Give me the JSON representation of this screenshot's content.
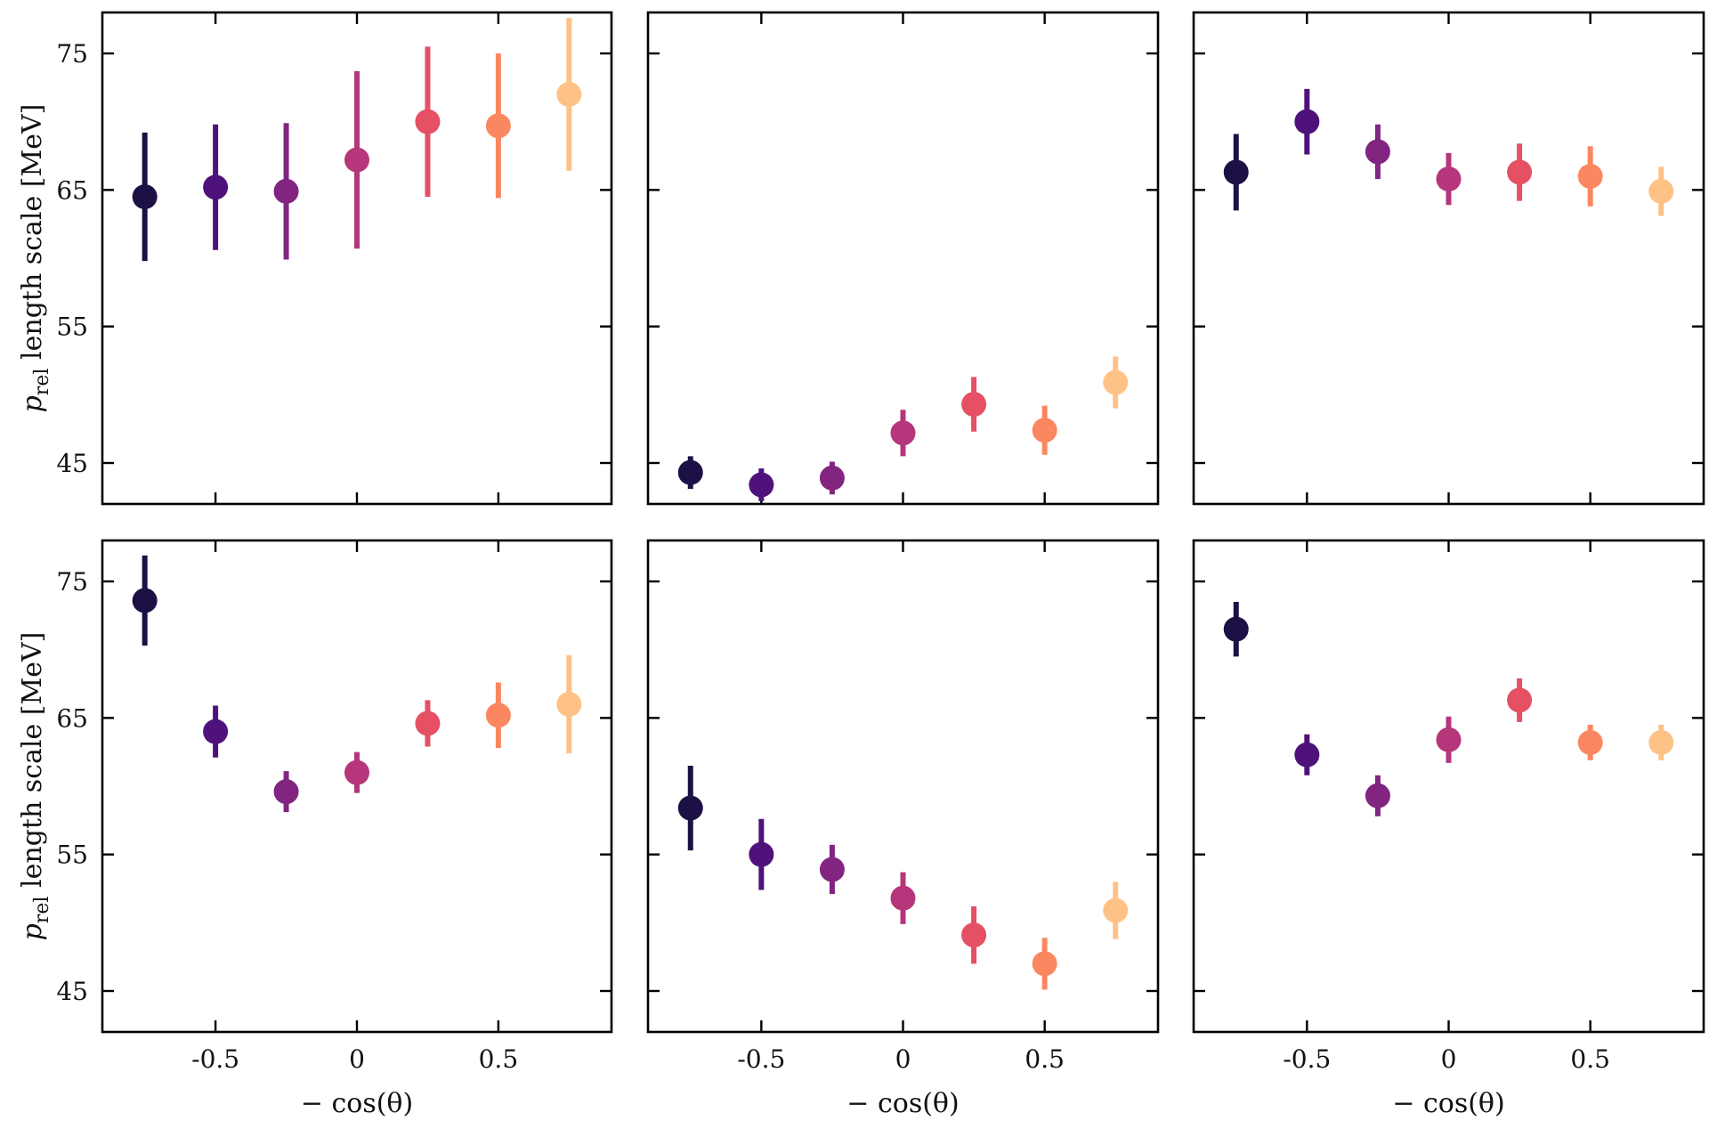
{
  "colors": [
    "#1c1044",
    "#4f127b",
    "#812581",
    "#b5367a",
    "#e55064",
    "#fb8761",
    "#fec287"
  ],
  "axis_labels": {
    "ylabel_var": "p",
    "ylabel_sub": "rel",
    "ylabel_rest": " length scale [MeV]",
    "xlabel": "− cos(θ)"
  },
  "chart_data": [
    {
      "type": "scatter",
      "panel": "top-left",
      "x": [
        -0.75,
        -0.5,
        -0.25,
        0,
        0.25,
        0.5,
        0.75
      ],
      "y": [
        64.5,
        65.2,
        64.9,
        67.2,
        70.0,
        69.7,
        72.0
      ],
      "err": [
        4.7,
        4.6,
        5.0,
        6.5,
        5.5,
        5.3,
        5.6
      ],
      "xlim": [
        -0.9,
        0.9
      ],
      "ylim": [
        42,
        78
      ],
      "xticks": [
        -0.5,
        0,
        0.5
      ],
      "yticks": [
        45,
        55,
        65,
        75
      ],
      "xticklabels": [
        "-0.5",
        "0",
        "0.5"
      ],
      "yticklabels": [
        "45",
        "55",
        "65",
        "75"
      ],
      "show_xticklabels": false,
      "show_yticklabels": true,
      "show_xlabel": false,
      "show_ylabel": true
    },
    {
      "type": "scatter",
      "panel": "top-center",
      "x": [
        -0.75,
        -0.5,
        -0.25,
        0,
        0.25,
        0.5,
        0.75
      ],
      "y": [
        44.3,
        43.4,
        43.9,
        47.2,
        49.3,
        47.4,
        50.9
      ],
      "err": [
        1.2,
        1.2,
        1.2,
        1.7,
        2.0,
        1.8,
        1.9
      ],
      "xlim": [
        -0.9,
        0.9
      ],
      "ylim": [
        42,
        78
      ],
      "xticks": [
        -0.5,
        0,
        0.5
      ],
      "yticks": [
        45,
        55,
        65,
        75
      ],
      "xticklabels": [
        "-0.5",
        "0",
        "0.5"
      ],
      "yticklabels": [
        "45",
        "55",
        "65",
        "75"
      ],
      "show_xticklabels": false,
      "show_yticklabels": false,
      "show_xlabel": false,
      "show_ylabel": false
    },
    {
      "type": "scatter",
      "panel": "top-right",
      "x": [
        -0.75,
        -0.5,
        -0.25,
        0,
        0.25,
        0.5,
        0.75
      ],
      "y": [
        66.3,
        70.0,
        67.8,
        65.8,
        66.3,
        66.0,
        64.9
      ],
      "err": [
        2.8,
        2.4,
        2.0,
        1.9,
        2.1,
        2.2,
        1.8
      ],
      "xlim": [
        -0.9,
        0.9
      ],
      "ylim": [
        42,
        78
      ],
      "xticks": [
        -0.5,
        0,
        0.5
      ],
      "yticks": [
        45,
        55,
        65,
        75
      ],
      "xticklabels": [
        "-0.5",
        "0",
        "0.5"
      ],
      "yticklabels": [
        "45",
        "55",
        "65",
        "75"
      ],
      "show_xticklabels": false,
      "show_yticklabels": false,
      "show_xlabel": false,
      "show_ylabel": false
    },
    {
      "type": "scatter",
      "panel": "bottom-left",
      "x": [
        -0.75,
        -0.5,
        -0.25,
        0,
        0.25,
        0.5,
        0.75
      ],
      "y": [
        73.6,
        64.0,
        59.6,
        61.0,
        64.6,
        65.2,
        66.0
      ],
      "err": [
        3.3,
        1.9,
        1.5,
        1.5,
        1.7,
        2.4,
        3.6
      ],
      "xlim": [
        -0.9,
        0.9
      ],
      "ylim": [
        42,
        78
      ],
      "xticks": [
        -0.5,
        0,
        0.5
      ],
      "yticks": [
        45,
        55,
        65,
        75
      ],
      "xticklabels": [
        "-0.5",
        "0",
        "0.5"
      ],
      "yticklabels": [
        "45",
        "55",
        "65",
        "75"
      ],
      "show_xticklabels": true,
      "show_yticklabels": true,
      "show_xlabel": true,
      "show_ylabel": true
    },
    {
      "type": "scatter",
      "panel": "bottom-center",
      "x": [
        -0.75,
        -0.5,
        -0.25,
        0,
        0.25,
        0.5,
        0.75
      ],
      "y": [
        58.4,
        55.0,
        53.9,
        51.8,
        49.1,
        47.0,
        50.9
      ],
      "err": [
        3.1,
        2.6,
        1.8,
        1.9,
        2.1,
        1.9,
        2.1
      ],
      "xlim": [
        -0.9,
        0.9
      ],
      "ylim": [
        42,
        78
      ],
      "xticks": [
        -0.5,
        0,
        0.5
      ],
      "yticks": [
        45,
        55,
        65,
        75
      ],
      "xticklabels": [
        "-0.5",
        "0",
        "0.5"
      ],
      "yticklabels": [
        "45",
        "55",
        "65",
        "75"
      ],
      "show_xticklabels": true,
      "show_yticklabels": false,
      "show_xlabel": true,
      "show_ylabel": false
    },
    {
      "type": "scatter",
      "panel": "bottom-right",
      "x": [
        -0.75,
        -0.5,
        -0.25,
        0,
        0.25,
        0.5,
        0.75
      ],
      "y": [
        71.5,
        62.3,
        59.3,
        63.4,
        66.3,
        63.2,
        63.2
      ],
      "err": [
        2.0,
        1.5,
        1.5,
        1.7,
        1.6,
        1.3,
        1.3
      ],
      "xlim": [
        -0.9,
        0.9
      ],
      "ylim": [
        42,
        78
      ],
      "xticks": [
        -0.5,
        0,
        0.5
      ],
      "yticks": [
        45,
        55,
        65,
        75
      ],
      "xticklabels": [
        "-0.5",
        "0",
        "0.5"
      ],
      "yticklabels": [
        "45",
        "55",
        "65",
        "75"
      ],
      "show_xticklabels": true,
      "show_yticklabels": false,
      "show_xlabel": true,
      "show_ylabel": false
    }
  ]
}
